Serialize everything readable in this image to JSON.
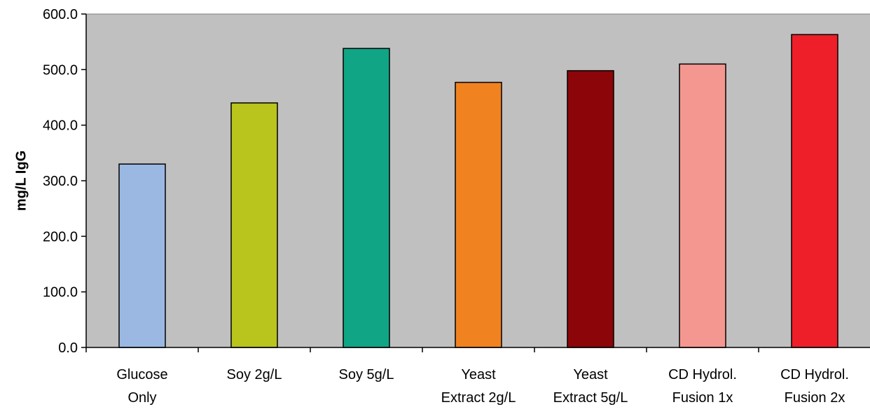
{
  "chart_data": {
    "type": "bar",
    "title": "",
    "xlabel": "",
    "ylabel": "mg/L IgG",
    "ylim": [
      0,
      600
    ],
    "yticks": [
      0,
      100,
      200,
      300,
      400,
      500,
      600
    ],
    "ytick_labels": [
      "0.0",
      "100.0",
      "200.0",
      "300.0",
      "400.0",
      "500.0",
      "600.0"
    ],
    "categories": [
      [
        "Glucose",
        "Only"
      ],
      [
        "Soy 2g/L"
      ],
      [
        "Soy 5g/L"
      ],
      [
        "Yeast",
        "Extract 2g/L"
      ],
      [
        "Yeast",
        "Extract 5g/L"
      ],
      [
        "CD Hydrol.",
        "Fusion 1x"
      ],
      [
        "CD Hydrol.",
        "Fusion 2x"
      ]
    ],
    "values": [
      330,
      440,
      538,
      477,
      498,
      510,
      563
    ],
    "colors": [
      "#9ab8e2",
      "#b9c41c",
      "#0fa585",
      "#f08220",
      "#8c0508",
      "#f59791",
      "#ee1f28"
    ],
    "plot_background": "#c0c0c0",
    "grid": false,
    "legend": "none"
  }
}
